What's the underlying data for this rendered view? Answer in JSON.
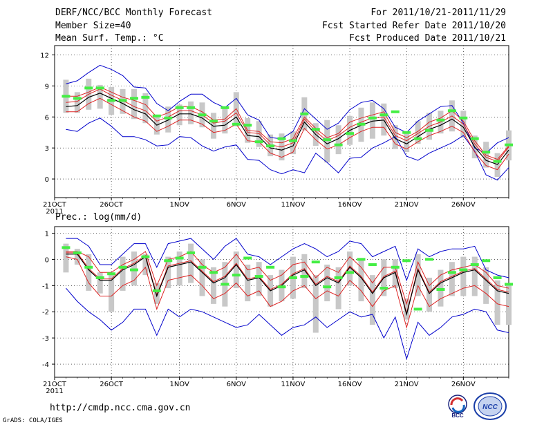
{
  "header": {
    "title": "DERF/NCC/BCC Monthly Forecast",
    "member_size": "Member Size=40",
    "variable": "Mean Surf. Temp.: °C",
    "period": "For 2011/10/21-2011/11/29",
    "started": "Fcst Started Refer Date 2011/10/20",
    "produced": "Fcst Produced Date 2011/10/21"
  },
  "footer": {
    "url": "http://cmdp.ncc.cma.gov.cn",
    "credit": "GrADS: COLA/IGES",
    "logo_left": "BCC",
    "logo_right": "NCC"
  },
  "colors": {
    "envelope": "#0000cc",
    "spread": "#dd2222",
    "mean": "#000000",
    "box": "#c8c8c8",
    "obs": "#44ee44"
  },
  "chart_data": [
    {
      "type": "line",
      "title": "Mean Surf. Temp.: °C",
      "ylim": [
        -1.8,
        12.9
      ],
      "yticks": [
        0,
        3,
        6,
        9,
        12
      ],
      "xlim": [
        0,
        40
      ],
      "xticks": [
        {
          "x": 0,
          "label": "21OCT",
          "sub": "2011"
        },
        {
          "x": 5,
          "label": "26OCT"
        },
        {
          "x": 11,
          "label": "1NOV"
        },
        {
          "x": 16,
          "label": "6NOV"
        },
        {
          "x": 21,
          "label": "11NOV"
        },
        {
          "x": 26,
          "label": "16NOV"
        },
        {
          "x": 31,
          "label": "21NOV"
        },
        {
          "x": 36,
          "label": "26NOV"
        }
      ],
      "x": [
        1,
        2,
        3,
        4,
        5,
        6,
        7,
        8,
        9,
        10,
        11,
        12,
        13,
        14,
        15,
        16,
        17,
        18,
        19,
        20,
        21,
        22,
        23,
        24,
        25,
        26,
        27,
        28,
        29,
        30,
        31,
        32,
        33,
        34,
        35,
        36,
        37,
        38,
        39,
        40
      ],
      "series": [
        {
          "name": "ensemble maximum",
          "role": "envelope",
          "values": [
            9.2,
            9.5,
            10.3,
            11.0,
            10.6,
            10.0,
            8.9,
            8.8,
            7.3,
            6.6,
            7.5,
            8.2,
            8.2,
            7.4,
            6.9,
            7.8,
            6.2,
            5.7,
            4.0,
            3.9,
            4.6,
            6.8,
            5.8,
            4.8,
            5.4,
            6.7,
            7.4,
            7.6,
            6.8,
            5.0,
            4.5,
            5.6,
            6.3,
            7.0,
            7.1,
            5.4,
            3.0,
            2.5,
            3.5,
            4.0
          ]
        },
        {
          "name": "ensemble minimum",
          "role": "envelope",
          "values": [
            4.8,
            4.6,
            5.4,
            5.9,
            5.1,
            4.1,
            4.1,
            3.8,
            3.2,
            3.3,
            4.1,
            4.0,
            3.2,
            2.7,
            3.1,
            3.3,
            1.9,
            1.8,
            0.9,
            0.5,
            0.9,
            0.6,
            2.5,
            1.6,
            0.6,
            2.0,
            2.1,
            3.0,
            3.5,
            4.1,
            2.2,
            1.8,
            2.5,
            3.0,
            3.5,
            4.2,
            2.7,
            0.4,
            -0.1,
            1.1
          ]
        },
        {
          "name": "upper percentile",
          "role": "spread",
          "values": [
            8.0,
            8.0,
            8.4,
            8.9,
            8.4,
            7.9,
            7.6,
            7.2,
            6.0,
            6.4,
            7.0,
            7.0,
            6.5,
            5.7,
            5.8,
            6.8,
            4.7,
            4.6,
            3.6,
            3.5,
            3.9,
            6.0,
            4.9,
            4.0,
            4.4,
            5.5,
            5.9,
            6.2,
            6.5,
            4.5,
            4.0,
            4.6,
            5.5,
            5.9,
            6.6,
            5.6,
            3.7,
            2.3,
            1.9,
            3.2
          ]
        },
        {
          "name": "lower percentile",
          "role": "spread",
          "values": [
            6.5,
            6.5,
            7.3,
            7.8,
            7.2,
            6.6,
            6.0,
            5.6,
            4.6,
            5.1,
            5.7,
            5.7,
            5.3,
            4.5,
            4.7,
            5.3,
            3.7,
            3.6,
            2.5,
            2.1,
            2.6,
            4.9,
            3.8,
            2.9,
            3.3,
            4.0,
            4.6,
            5.0,
            5.0,
            3.4,
            2.9,
            3.6,
            4.2,
            4.6,
            5.1,
            4.5,
            2.6,
            1.3,
            0.9,
            2.4
          ]
        },
        {
          "name": "ensemble mean",
          "role": "mean",
          "values": [
            7.0,
            7.1,
            7.9,
            8.3,
            7.8,
            7.3,
            6.7,
            6.3,
            5.2,
            5.7,
            6.3,
            6.3,
            5.9,
            5.1,
            5.2,
            6.0,
            4.2,
            4.1,
            3.0,
            2.8,
            3.2,
            5.5,
            4.3,
            3.4,
            3.9,
            4.7,
            5.2,
            5.6,
            5.7,
            3.9,
            3.4,
            4.1,
            4.8,
            5.2,
            5.8,
            5.0,
            3.1,
            1.8,
            1.4,
            2.8
          ]
        },
        {
          "name": "control forecast",
          "role": "mean",
          "values": [
            7.4,
            7.5,
            8.2,
            8.7,
            8.1,
            7.6,
            7.0,
            6.6,
            5.6,
            6.0,
            6.6,
            6.6,
            6.2,
            5.4,
            5.6,
            6.4,
            4.5,
            4.4,
            3.3,
            3.1,
            3.5,
            5.8,
            4.6,
            3.7,
            4.2,
            5.0,
            5.5,
            5.9,
            6.0,
            4.2,
            3.7,
            4.4,
            5.1,
            5.5,
            6.1,
            5.3,
            3.4,
            2.1,
            1.7,
            3.1
          ]
        },
        {
          "name": "box top",
          "role": "box",
          "values": [
            9.6,
            8.4,
            9.7,
            9.1,
            8.9,
            8.7,
            8.7,
            8.3,
            6.2,
            7.0,
            7.2,
            7.5,
            7.4,
            6.4,
            6.8,
            8.4,
            5.9,
            5.6,
            4.3,
            4.4,
            4.6,
            7.9,
            5.4,
            5.7,
            5.2,
            6.1,
            6.9,
            7.4,
            7.3,
            5.2,
            4.6,
            5.6,
            6.4,
            6.6,
            7.6,
            6.6,
            4.2,
            3.6,
            2.5,
            4.7
          ]
        },
        {
          "name": "box bottom",
          "role": "box",
          "values": [
            6.4,
            6.4,
            6.7,
            6.8,
            6.2,
            6.3,
            5.8,
            5.4,
            4.3,
            4.5,
            5.2,
            5.3,
            5.0,
            3.9,
            4.4,
            5.1,
            3.5,
            3.1,
            2.2,
            1.8,
            2.4,
            4.7,
            3.2,
            1.6,
            2.4,
            3.3,
            3.6,
            3.9,
            4.2,
            2.9,
            2.6,
            3.4,
            3.8,
            4.4,
            4.6,
            4.0,
            2.0,
            1.1,
            0.2,
            1.8
          ]
        },
        {
          "name": "observed / control marker",
          "role": "obs",
          "values": [
            8.0,
            7.8,
            8.8,
            8.8,
            7.6,
            7.6,
            7.8,
            7.9,
            6.1,
            5.9,
            6.9,
            6.9,
            6.2,
            5.6,
            6.9,
            5.3,
            5.2,
            3.6,
            3.2,
            3.9,
            3.7,
            6.3,
            4.8,
            3.8,
            3.3,
            4.4,
            5.3,
            5.9,
            6.2,
            6.5,
            4.5,
            3.9,
            4.7,
            5.7,
            6.6,
            5.9,
            3.9,
            2.6,
            1.7,
            3.3
          ]
        }
      ]
    },
    {
      "type": "line",
      "title": "Prec.: log(mm/d)",
      "ylim": [
        -4.5,
        1.25
      ],
      "yticks": [
        -4,
        -3,
        -2,
        -1,
        0,
        1
      ],
      "xlim": [
        0,
        40
      ],
      "xticks": [
        {
          "x": 0,
          "label": "21OCT",
          "sub": "2011"
        },
        {
          "x": 5,
          "label": "26OCT"
        },
        {
          "x": 11,
          "label": "1NOV"
        },
        {
          "x": 16,
          "label": "6NOV"
        },
        {
          "x": 21,
          "label": "11NOV"
        },
        {
          "x": 26,
          "label": "16NOV"
        },
        {
          "x": 31,
          "label": "21NOV"
        },
        {
          "x": 36,
          "label": "26NOV"
        }
      ],
      "x": [
        1,
        2,
        3,
        4,
        5,
        6,
        7,
        8,
        9,
        10,
        11,
        12,
        13,
        14,
        15,
        16,
        17,
        18,
        19,
        20,
        21,
        22,
        23,
        24,
        25,
        26,
        27,
        28,
        29,
        30,
        31,
        32,
        33,
        34,
        35,
        36,
        37,
        38,
        39,
        40
      ],
      "series": [
        {
          "name": "ensemble maximum",
          "role": "envelope",
          "values": [
            0.8,
            0.8,
            0.5,
            -0.2,
            -0.2,
            0.2,
            0.6,
            0.6,
            -0.3,
            0.6,
            0.7,
            0.8,
            0.4,
            0.0,
            0.5,
            0.8,
            0.2,
            0.1,
            -0.2,
            0.1,
            0.4,
            0.6,
            0.4,
            0.1,
            0.3,
            0.7,
            0.6,
            0.1,
            0.3,
            0.5,
            -0.8,
            0.4,
            0.1,
            0.3,
            0.4,
            0.4,
            0.5,
            -0.4,
            -0.6,
            -0.7
          ]
        },
        {
          "name": "ensemble minimum",
          "role": "envelope",
          "values": [
            -1.1,
            -1.6,
            -2.0,
            -2.3,
            -2.7,
            -2.4,
            -1.9,
            -1.9,
            -2.9,
            -1.9,
            -2.2,
            -1.9,
            -2.0,
            -2.2,
            -2.4,
            -2.6,
            -2.5,
            -2.1,
            -2.5,
            -2.9,
            -2.6,
            -2.5,
            -2.2,
            -2.6,
            -2.3,
            -2.0,
            -2.2,
            -2.1,
            -3.0,
            -2.2,
            -3.8,
            -2.4,
            -2.9,
            -2.6,
            -2.2,
            -2.1,
            -1.9,
            -2.0,
            -2.7,
            -2.8
          ]
        },
        {
          "name": "upper percentile",
          "role": "spread",
          "values": [
            0.3,
            0.3,
            0.1,
            -0.5,
            -0.5,
            -0.2,
            0.0,
            0.3,
            -1.0,
            0.0,
            0.1,
            0.3,
            -0.2,
            -0.5,
            -0.3,
            0.2,
            -0.4,
            -0.3,
            -0.8,
            -0.6,
            -0.2,
            -0.1,
            -0.7,
            -0.3,
            -0.5,
            0.1,
            -0.3,
            -0.9,
            -0.3,
            -0.3,
            -1.7,
            -0.1,
            -1.0,
            -0.6,
            -0.4,
            -0.3,
            -0.2,
            -0.5,
            -1.0,
            -1.1
          ]
        },
        {
          "name": "lower percentile",
          "role": "spread",
          "values": [
            0.1,
            0.0,
            -0.9,
            -1.4,
            -1.4,
            -1.0,
            -0.8,
            -0.3,
            -1.9,
            -0.8,
            -0.7,
            -0.6,
            -1.0,
            -1.5,
            -1.3,
            -0.9,
            -1.4,
            -1.2,
            -1.8,
            -1.6,
            -1.2,
            -1.0,
            -1.5,
            -1.2,
            -1.4,
            -0.8,
            -1.2,
            -1.8,
            -1.2,
            -1.0,
            -2.6,
            -1.0,
            -1.8,
            -1.5,
            -1.3,
            -1.1,
            -1.0,
            -1.3,
            -1.7,
            -1.8
          ]
        },
        {
          "name": "ensemble mean",
          "role": "mean",
          "values": [
            0.2,
            0.2,
            -0.4,
            -0.8,
            -0.8,
            -0.4,
            -0.2,
            0.1,
            -1.4,
            -0.3,
            -0.2,
            -0.1,
            -0.5,
            -0.9,
            -0.7,
            -0.2,
            -0.8,
            -0.7,
            -1.2,
            -1.0,
            -0.6,
            -0.4,
            -1.0,
            -0.7,
            -0.9,
            -0.3,
            -0.7,
            -1.3,
            -0.7,
            -0.5,
            -2.1,
            -0.4,
            -1.3,
            -0.9,
            -0.7,
            -0.5,
            -0.4,
            -0.8,
            -1.2,
            -1.3
          ]
        },
        {
          "name": "control forecast",
          "role": "mean",
          "values": [
            0.25,
            0.25,
            -0.35,
            -0.75,
            -0.75,
            -0.35,
            -0.15,
            0.15,
            -1.35,
            -0.25,
            -0.15,
            -0.05,
            -0.45,
            -0.85,
            -0.65,
            -0.15,
            -0.75,
            -0.65,
            -1.15,
            -0.95,
            -0.55,
            -0.35,
            -0.95,
            -0.65,
            -0.85,
            -0.25,
            -0.65,
            -1.25,
            -0.65,
            -0.45,
            -2.05,
            -0.35,
            -1.25,
            -0.85,
            -0.65,
            -0.45,
            -0.35,
            -0.75,
            -1.15,
            -1.25
          ]
        },
        {
          "name": "box top",
          "role": "box",
          "values": [
            0.6,
            0.4,
            0.2,
            -0.5,
            -0.5,
            0.1,
            0.3,
            0.2,
            -0.9,
            0.1,
            0.3,
            0.6,
            0.0,
            -0.3,
            -0.1,
            0.3,
            -0.2,
            -0.1,
            -0.6,
            -0.4,
            0.1,
            0.2,
            -0.6,
            -0.2,
            -0.3,
            0.3,
            0.0,
            -0.6,
            0.0,
            0.0,
            -1.5,
            0.2,
            -0.7,
            -0.4,
            -0.1,
            0.1,
            0.1,
            -0.3,
            -0.8,
            -0.9
          ]
        },
        {
          "name": "box bottom",
          "role": "box",
          "values": [
            -0.5,
            -0.2,
            -1.2,
            -1.3,
            -2.0,
            -1.2,
            -1.0,
            -0.6,
            -1.7,
            -1.1,
            -1.0,
            -0.9,
            -1.4,
            -1.7,
            -1.8,
            -1.1,
            -1.6,
            -1.4,
            -1.8,
            -1.6,
            -1.5,
            -1.1,
            -2.8,
            -1.6,
            -1.9,
            -1.0,
            -1.6,
            -2.5,
            -1.4,
            -1.1,
            -2.3,
            -1.4,
            -2.0,
            -1.8,
            -1.4,
            -1.4,
            -1.4,
            -1.7,
            -2.5,
            -2.5
          ]
        },
        {
          "name": "observed / control marker",
          "role": "obs",
          "values": [
            0.45,
            0.25,
            -0.3,
            -0.7,
            -0.55,
            -0.3,
            -0.4,
            0.1,
            -1.2,
            -0.05,
            0.05,
            0.25,
            -0.3,
            -0.5,
            -0.95,
            -0.6,
            0.05,
            -0.65,
            -0.3,
            -1.05,
            -0.7,
            -0.65,
            -0.1,
            -1.05,
            -0.7,
            -0.5,
            0.0,
            -0.2,
            -1.1,
            -0.3,
            -0.05,
            -1.9,
            0.0,
            -1.15,
            -0.5,
            -0.4,
            -0.2,
            -0.05,
            -0.7,
            -0.95
          ]
        }
      ]
    }
  ]
}
